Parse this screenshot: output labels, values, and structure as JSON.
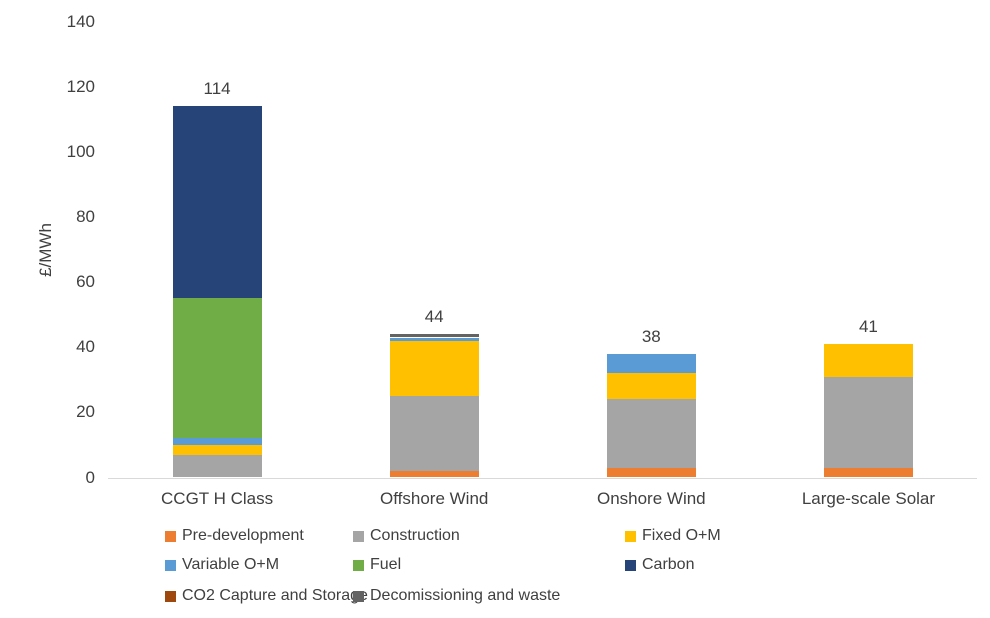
{
  "chart_data": {
    "type": "bar",
    "variant": "stacked-column",
    "title": "",
    "ylabel": "£/MWh",
    "xlabel": "",
    "ylim": [
      0,
      140
    ],
    "yticks": [
      0,
      20,
      40,
      60,
      80,
      100,
      120,
      140
    ],
    "grid": false,
    "legend_position": "bottom",
    "background_color": "#FFFFFF",
    "axis_line_color": "#D9D9D9",
    "text_color": "#404040",
    "categories": [
      "CCGT H Class",
      "Offshore Wind",
      "Onshore Wind",
      "Large-scale Solar"
    ],
    "totals": [
      114,
      44,
      38,
      41
    ],
    "series": [
      {
        "name": "Pre-development",
        "color": "#ED7D31",
        "values": [
          0,
          2,
          3,
          3
        ]
      },
      {
        "name": "Construction",
        "color": "#A5A5A5",
        "values": [
          7,
          23,
          21,
          28
        ]
      },
      {
        "name": "Fixed O+M",
        "color": "#FFC000",
        "values": [
          3,
          17,
          8,
          10
        ]
      },
      {
        "name": "Variable O+M",
        "color": "#5B9BD5",
        "values": [
          2,
          1,
          6,
          0
        ]
      },
      {
        "name": "Fuel",
        "color": "#70AD47",
        "values": [
          43,
          0,
          0,
          0
        ]
      },
      {
        "name": "Carbon",
        "color": "#264478",
        "values": [
          59,
          0,
          0,
          0
        ]
      },
      {
        "name": "CO2 Capture and Storage",
        "color": "#9E480E",
        "values": [
          0,
          0,
          0,
          0
        ]
      },
      {
        "name": "Decomissioning and waste",
        "color": "#636363",
        "values": [
          0,
          1,
          0,
          0
        ]
      }
    ]
  }
}
